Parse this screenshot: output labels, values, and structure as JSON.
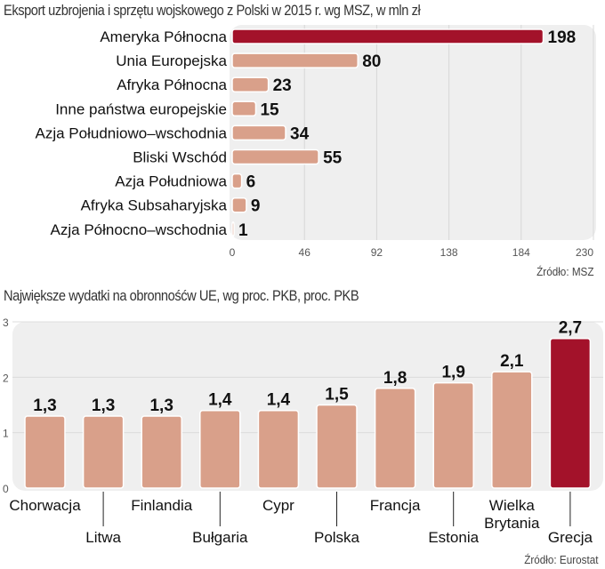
{
  "chart_data": [
    {
      "type": "bar",
      "orientation": "horizontal",
      "title": "Eksport uzbrojenia i sprzętu wojskowego z Polski w 2015 r. wg MSZ, w mln zł",
      "categories": [
        "Ameryka Północna",
        "Unia Europejska",
        "Afryka Północna",
        "Inne państwa europejskie",
        "Azja Południowo–wschodnia",
        "Bliski Wschód",
        "Azja Południowa",
        "Afryka Subsaharyjska",
        "Azja Północno–wschodnia"
      ],
      "values": [
        198,
        80,
        23,
        15,
        34,
        55,
        6,
        9,
        1
      ],
      "value_labels": [
        "198",
        "80",
        "23",
        "15",
        "34",
        "55",
        "6",
        "9",
        "1"
      ],
      "xlim": [
        0,
        230
      ],
      "xticks": [
        "0",
        "46",
        "92",
        "138",
        "184",
        "230"
      ],
      "grid": true,
      "source": "Źródło: MSZ",
      "colors": {
        "highlight": "#a3122a",
        "bar": "#d9a08a",
        "panel": "#efefef"
      },
      "highlight_index": 0
    },
    {
      "type": "bar",
      "orientation": "vertical",
      "title": "Największe wydatki na obronnośćw UE, wg proc. PKB,  proc. PKB",
      "categories": [
        "Chorwacja",
        "Litwa",
        "Finlandia",
        "Bułgaria",
        "Cypr",
        "Polska",
        "Francja",
        "Estonia",
        "Wielka Brytania",
        "Grecja"
      ],
      "values": [
        1.3,
        1.3,
        1.3,
        1.4,
        1.4,
        1.5,
        1.8,
        1.9,
        2.1,
        2.7
      ],
      "value_labels": [
        "1,3",
        "1,3",
        "1,3",
        "1,4",
        "1,4",
        "1,5",
        "1,8",
        "1,9",
        "2,1",
        "2,7"
      ],
      "ylim": [
        0,
        3
      ],
      "yticks": [
        "0",
        "1",
        "2",
        "3"
      ],
      "grid": true,
      "source": "Źródło: Eurostat",
      "colors": {
        "highlight": "#a3122a",
        "bar": "#d9a08a",
        "panel": "#efefef"
      },
      "highlight_index": 9
    }
  ]
}
